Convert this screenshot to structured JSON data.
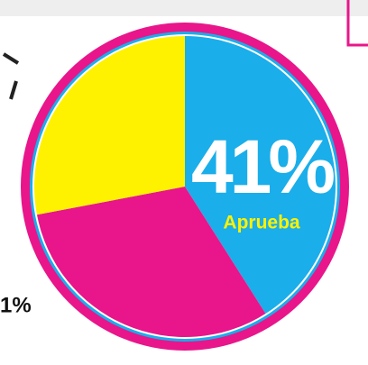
{
  "chart_data": {
    "type": "pie",
    "categories": [
      "Aprueba",
      null,
      null
    ],
    "values": [
      41,
      31,
      28
    ],
    "value_labels": [
      "41%",
      null,
      null
    ],
    "colors": [
      "#1aaeea",
      "#e8168a",
      "#fff200"
    ],
    "annotations": [
      "1%"
    ]
  }
}
